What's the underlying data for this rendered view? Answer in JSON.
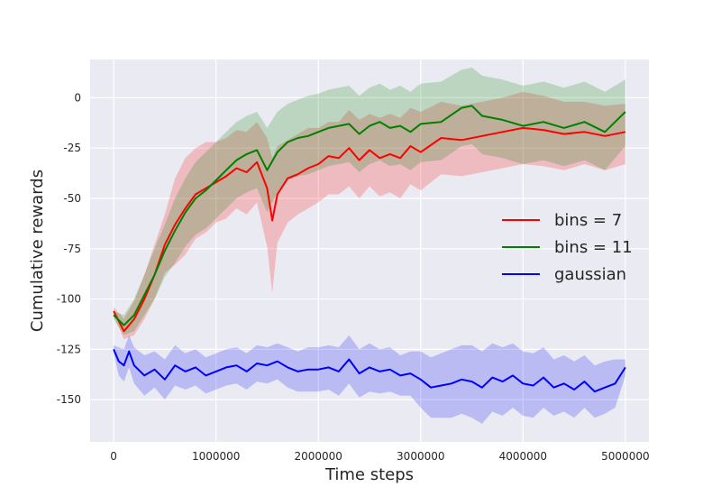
{
  "chart_data": {
    "type": "line",
    "title": "",
    "xlabel": "Time steps",
    "ylabel": "Cumulative rewards",
    "xlim": [
      -230000,
      5230000
    ],
    "ylim": [
      -171,
      19
    ],
    "xticks": [
      0,
      1000000,
      2000000,
      3000000,
      4000000,
      5000000
    ],
    "xtick_labels": [
      "0",
      "1000000",
      "2000000",
      "3000000",
      "4000000",
      "5000000"
    ],
    "yticks": [
      -150,
      -125,
      -100,
      -75,
      -50,
      -25,
      0
    ],
    "ytick_labels": [
      "-150",
      "-125",
      "-100",
      "-75",
      "-50",
      "-25",
      "0"
    ],
    "grid": true,
    "legend_position": "center-right",
    "series": [
      {
        "name": "bins = 7",
        "color": "#ff0000",
        "x": [
          0,
          100000,
          200000,
          300000,
          400000,
          500000,
          600000,
          700000,
          800000,
          900000,
          1000000,
          1100000,
          1200000,
          1300000,
          1400000,
          1500000,
          1550000,
          1600000,
          1700000,
          1800000,
          1900000,
          2000000,
          2100000,
          2200000,
          2300000,
          2400000,
          2500000,
          2600000,
          2700000,
          2800000,
          2900000,
          3000000,
          3200000,
          3400000,
          3600000,
          3800000,
          4000000,
          4200000,
          4400000,
          4600000,
          4800000,
          5000000
        ],
        "y": [
          -106,
          -116,
          -110,
          -100,
          -88,
          -73,
          -63,
          -55,
          -48,
          -45,
          -42,
          -39,
          -35,
          -37,
          -32,
          -45,
          -61,
          -48,
          -40,
          -38,
          -35,
          -33,
          -29,
          -30,
          -25,
          -31,
          -26,
          -30,
          -28,
          -30,
          -24,
          -27,
          -20,
          -21,
          -19,
          -17,
          -15,
          -16,
          -18,
          -17,
          -19,
          -17
        ],
        "band_upper": [
          -104,
          -110,
          -101,
          -88,
          -73,
          -58,
          -40,
          -30,
          -25,
          -22,
          -22,
          -20,
          -16,
          -17,
          -12,
          -20,
          -30,
          -24,
          -21,
          -18,
          -15,
          -15,
          -12,
          -12,
          -6,
          -11,
          -8,
          -10,
          -8,
          -10,
          -5,
          -7,
          -2,
          -4,
          -2,
          0,
          3,
          1,
          -2,
          -2,
          -4,
          -3
        ],
        "band_lower": [
          -108,
          -120,
          -118,
          -110,
          -100,
          -87,
          -83,
          -78,
          -70,
          -67,
          -62,
          -60,
          -55,
          -58,
          -52,
          -74,
          -97,
          -72,
          -62,
          -58,
          -55,
          -52,
          -48,
          -48,
          -44,
          -50,
          -44,
          -49,
          -47,
          -50,
          -43,
          -46,
          -38,
          -39,
          -37,
          -35,
          -33,
          -34,
          -36,
          -33,
          -36,
          -33
        ]
      },
      {
        "name": "bins = 11",
        "color": "#008000",
        "x": [
          0,
          100000,
          200000,
          300000,
          400000,
          500000,
          600000,
          700000,
          800000,
          900000,
          1000000,
          1100000,
          1200000,
          1300000,
          1400000,
          1500000,
          1600000,
          1700000,
          1800000,
          1900000,
          2000000,
          2100000,
          2200000,
          2300000,
          2400000,
          2500000,
          2600000,
          2700000,
          2800000,
          2900000,
          3000000,
          3200000,
          3400000,
          3500000,
          3600000,
          3800000,
          4000000,
          4200000,
          4400000,
          4600000,
          4800000,
          5000000
        ],
        "y": [
          -108,
          -113,
          -108,
          -98,
          -88,
          -76,
          -66,
          -57,
          -50,
          -46,
          -41,
          -36,
          -31,
          -28,
          -26,
          -36,
          -27,
          -22,
          -20,
          -19,
          -17,
          -15,
          -14,
          -13,
          -18,
          -14,
          -12,
          -15,
          -14,
          -17,
          -13,
          -12,
          -5,
          -4,
          -9,
          -11,
          -14,
          -12,
          -15,
          -12,
          -17,
          -7
        ],
        "band_upper": [
          -106,
          -108,
          -100,
          -88,
          -75,
          -63,
          -50,
          -40,
          -32,
          -27,
          -22,
          -17,
          -12,
          -9,
          -7,
          -15,
          -7,
          -3,
          -1,
          1,
          2,
          4,
          5,
          6,
          1,
          5,
          7,
          4,
          6,
          3,
          7,
          8,
          14,
          15,
          11,
          9,
          6,
          8,
          5,
          8,
          3,
          9
        ],
        "band_lower": [
          -110,
          -118,
          -116,
          -108,
          -100,
          -89,
          -82,
          -74,
          -68,
          -65,
          -60,
          -55,
          -50,
          -47,
          -45,
          -57,
          -47,
          -41,
          -39,
          -38,
          -36,
          -34,
          -33,
          -32,
          -37,
          -33,
          -31,
          -34,
          -33,
          -36,
          -32,
          -31,
          -24,
          -23,
          -28,
          -30,
          -33,
          -31,
          -34,
          -31,
          -36,
          -24
        ]
      },
      {
        "name": "gaussian",
        "color": "#0000ff",
        "x": [
          0,
          50000,
          100000,
          150000,
          200000,
          300000,
          400000,
          500000,
          600000,
          700000,
          800000,
          900000,
          1000000,
          1100000,
          1200000,
          1300000,
          1400000,
          1500000,
          1600000,
          1700000,
          1800000,
          1900000,
          2000000,
          2100000,
          2200000,
          2300000,
          2400000,
          2500000,
          2600000,
          2700000,
          2800000,
          2900000,
          3000000,
          3100000,
          3200000,
          3300000,
          3400000,
          3500000,
          3600000,
          3700000,
          3800000,
          3900000,
          4000000,
          4100000,
          4200000,
          4300000,
          4400000,
          4500000,
          4600000,
          4700000,
          4800000,
          4900000,
          5000000
        ],
        "y": [
          -125,
          -131,
          -133,
          -126,
          -133,
          -138,
          -135,
          -140,
          -133,
          -136,
          -134,
          -138,
          -136,
          -134,
          -133,
          -136,
          -132,
          -133,
          -131,
          -134,
          -136,
          -135,
          -135,
          -134,
          -136,
          -130,
          -137,
          -134,
          -136,
          -135,
          -138,
          -137,
          -140,
          -144,
          -143,
          -142,
          -140,
          -141,
          -144,
          -139,
          -141,
          -138,
          -142,
          -143,
          -139,
          -144,
          -142,
          -145,
          -141,
          -146,
          -144,
          -142,
          -134
        ],
        "band_upper": [
          -123,
          -124,
          -125,
          -118,
          -124,
          -128,
          -126,
          -130,
          -123,
          -127,
          -125,
          -129,
          -127,
          -125,
          -124,
          -127,
          -123,
          -124,
          -122,
          -124,
          -126,
          -124,
          -124,
          -123,
          -124,
          -118,
          -125,
          -122,
          -125,
          -124,
          -128,
          -126,
          -126,
          -129,
          -127,
          -125,
          -123,
          -123,
          -126,
          -122,
          -124,
          -122,
          -126,
          -127,
          -124,
          -130,
          -128,
          -131,
          -128,
          -133,
          -131,
          -130,
          -130
        ],
        "band_lower": [
          -127,
          -138,
          -141,
          -134,
          -142,
          -148,
          -144,
          -150,
          -143,
          -145,
          -143,
          -147,
          -145,
          -143,
          -142,
          -145,
          -141,
          -142,
          -140,
          -144,
          -146,
          -146,
          -146,
          -145,
          -148,
          -142,
          -149,
          -146,
          -147,
          -146,
          -148,
          -148,
          -154,
          -159,
          -159,
          -159,
          -157,
          -159,
          -162,
          -156,
          -158,
          -154,
          -158,
          -159,
          -154,
          -158,
          -156,
          -159,
          -154,
          -159,
          -157,
          -154,
          -138
        ]
      }
    ]
  }
}
